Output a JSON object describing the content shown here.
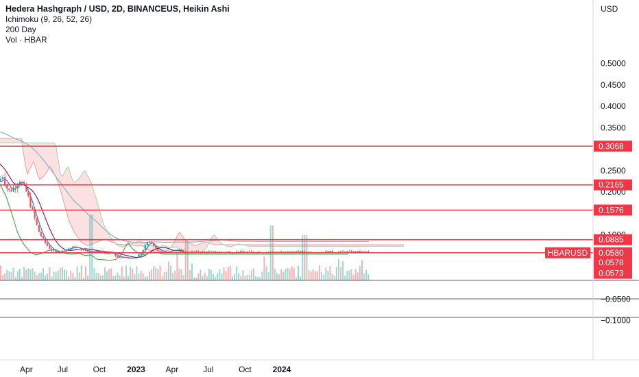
{
  "legend": {
    "title": "Hedera Hashgraph / USD, 2D, BINANCEUS, Heikin Ashi",
    "ichimoku": "Ichimoku (9, 26, 52, 26)",
    "ma": "200 Day",
    "volume": "Vol · HBAR"
  },
  "colors": {
    "level": "#f23645",
    "up": "#26a69a",
    "down": "#ef5350",
    "tenkan": "#2962ff",
    "kijun": "#880e4f",
    "chikou": "#43a047",
    "ma": "#8ab4c8",
    "cloud_bear": "#f8c8c8",
    "cloud_bull": "#c8e6c9"
  },
  "chart_data": {
    "type": "line",
    "title": "Hedera Hashgraph / USD, 2D, BINANCEUS, Heikin Ashi",
    "currency": "USD",
    "y_ticks": [
      "0.5000",
      "0.4500",
      "0.4000",
      "0.3500",
      "0.2500",
      "0.2000",
      "0.1000",
      "−0.0500",
      "−0.1000"
    ],
    "y_range": [
      -0.1,
      0.55
    ],
    "x_ticks": [
      {
        "label": "Apr",
        "bold": false
      },
      {
        "label": "Jul",
        "bold": false
      },
      {
        "label": "Oct",
        "bold": false
      },
      {
        "label": "2023",
        "bold": true
      },
      {
        "label": "Apr",
        "bold": false
      },
      {
        "label": "Jul",
        "bold": false
      },
      {
        "label": "Oct",
        "bold": false
      },
      {
        "label": "2024",
        "bold": true
      }
    ],
    "horizontal_levels": [
      0.3068,
      0.2165,
      0.1576,
      0.0885,
      0.058
    ],
    "horizontal_level_labels": [
      "0.3068",
      "0.2165",
      "0.1576",
      "0.0885"
    ],
    "symbol_tag": {
      "symbol": "HBARUSD",
      "price": "0.0580"
    },
    "price_labels": [
      "0.0578",
      "0.0573"
    ],
    "price_series": {
      "name": "HBARUSD",
      "x": [
        "2022-01-01",
        "2022-01-15",
        "2022-02-01",
        "2022-02-15",
        "2022-03-01",
        "2022-03-15",
        "2022-04-01",
        "2022-04-15",
        "2022-05-01",
        "2022-05-15",
        "2022-06-01",
        "2022-06-15",
        "2022-07-01",
        "2022-07-15",
        "2022-08-01",
        "2022-08-15",
        "2022-09-01",
        "2022-09-15",
        "2022-10-01",
        "2022-10-15",
        "2022-11-01",
        "2022-11-15",
        "2022-12-01",
        "2022-12-15",
        "2023-01-01",
        "2023-01-15",
        "2023-02-01",
        "2023-02-15",
        "2023-03-01",
        "2023-03-15",
        "2023-04-01",
        "2023-04-15",
        "2023-05-01"
      ],
      "values": [
        0.29,
        0.21,
        0.24,
        0.2,
        0.21,
        0.23,
        0.2,
        0.16,
        0.11,
        0.085,
        0.065,
        0.058,
        0.062,
        0.068,
        0.072,
        0.066,
        0.061,
        0.06,
        0.062,
        0.057,
        0.058,
        0.048,
        0.047,
        0.045,
        0.047,
        0.058,
        0.088,
        0.07,
        0.062,
        0.058,
        0.065,
        0.064,
        0.06
      ]
    }
  }
}
